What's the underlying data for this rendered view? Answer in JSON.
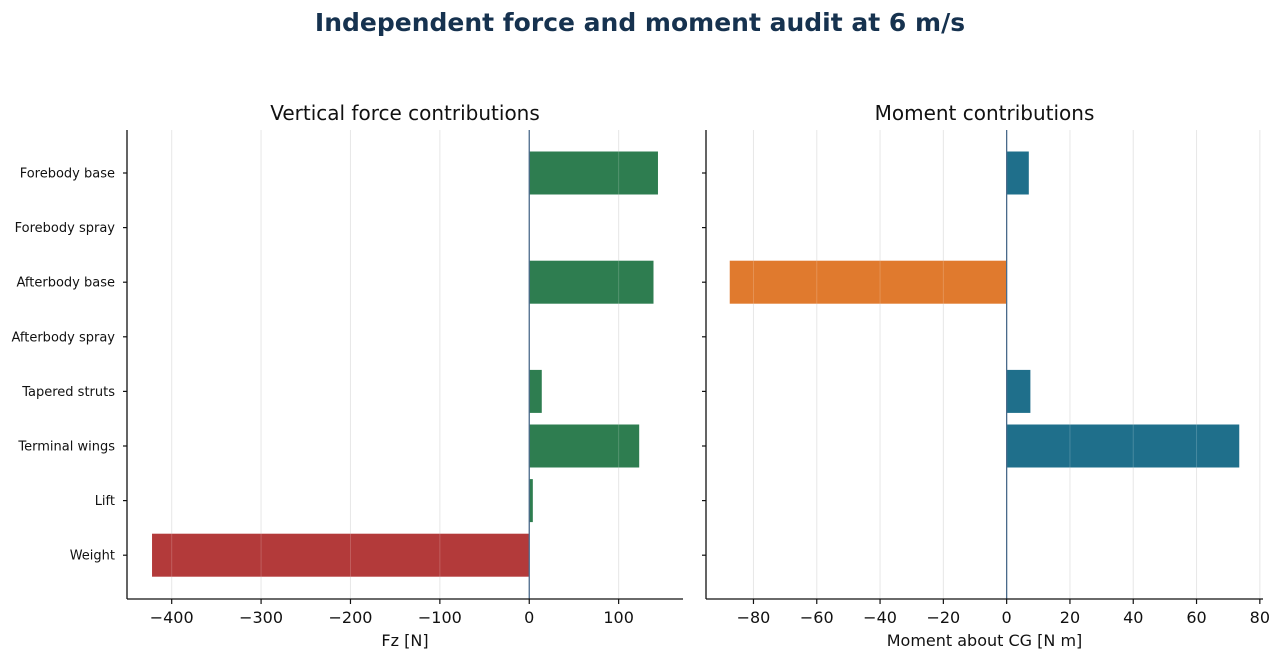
{
  "figure": {
    "title": "Independent force and moment audit at 6 m/s"
  },
  "colors": {
    "positive_force": "#2e7d50",
    "negative_force": "#b33a3a",
    "positive_moment": "#1f6f8b",
    "negative_moment": "#e07a2e",
    "zero_line": "#4a6a8a",
    "title": "#16324f"
  },
  "chart_data": [
    {
      "type": "bar",
      "orientation": "horizontal",
      "title": "Vertical force contributions",
      "xlabel": "Fz [N]",
      "ylabel": "",
      "categories": [
        "Forebody base",
        "Forebody spray",
        "Afterbody base",
        "Afterbody spray",
        "Tapered struts",
        "Terminal wings",
        "Lift",
        "Weight"
      ],
      "values": [
        144,
        0,
        139,
        0,
        14,
        123,
        4,
        -422
      ],
      "xlim": [
        -450,
        172
      ],
      "xticks": [
        -400,
        -300,
        -200,
        -100,
        0,
        100
      ],
      "xtick_labels": [
        "−400",
        "−300",
        "−200",
        "−100",
        "0",
        "100"
      ],
      "grid": "vertical",
      "legend": "none"
    },
    {
      "type": "bar",
      "orientation": "horizontal",
      "title": "Moment contributions",
      "xlabel": "Moment about CG [N m]",
      "ylabel": "",
      "categories": [
        "Forebody base",
        "Forebody spray",
        "Afterbody base",
        "Afterbody spray",
        "Tapered struts",
        "Terminal wings",
        "Lift",
        "Weight"
      ],
      "values": [
        7,
        0,
        -87.5,
        0,
        7.5,
        73.5,
        0,
        0
      ],
      "xlim": [
        -95,
        81
      ],
      "xticks": [
        -80,
        -60,
        -40,
        -20,
        0,
        20,
        40,
        60,
        80
      ],
      "xtick_labels": [
        "−80",
        "−60",
        "−40",
        "−20",
        "0",
        "20",
        "40",
        "60",
        "80"
      ],
      "ytick_labels_shown": false,
      "grid": "vertical",
      "legend": "none"
    }
  ]
}
